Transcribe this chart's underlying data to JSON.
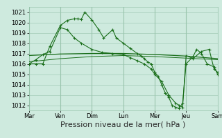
{
  "bg_color": "#ceeade",
  "grid_color": "#98c4ac",
  "line_color": "#1a6e1a",
  "marker_color": "#1a6e1a",
  "xlabel": "Pression niveau de la mer( hPa )",
  "xlabel_fontsize": 8,
  "ylabel_fontsize": 6,
  "ylim": [
    1011.5,
    1021.5
  ],
  "yticks": [
    1012,
    1013,
    1014,
    1015,
    1016,
    1017,
    1018,
    1019,
    1020,
    1021
  ],
  "day_labels": [
    "Mar",
    "Ven",
    "Dim",
    "Lun",
    "Mer",
    "Jeu",
    "Sam"
  ],
  "day_positions": [
    0,
    45,
    90,
    135,
    180,
    225,
    270
  ],
  "xlim": [
    0,
    270
  ],
  "s1_x": [
    0,
    10,
    20,
    30,
    45,
    55,
    65,
    70,
    75,
    80,
    90,
    100,
    107,
    120,
    125,
    135,
    145,
    155,
    160,
    165,
    170,
    175,
    180,
    185,
    190,
    195,
    200,
    205,
    210,
    215,
    220,
    225,
    235,
    240,
    247,
    255,
    265,
    270
  ],
  "s1_y": [
    1016.0,
    1016.0,
    1016.0,
    1017.7,
    1019.7,
    1020.2,
    1020.35,
    1020.35,
    1020.3,
    1021.0,
    1020.25,
    1019.3,
    1018.5,
    1019.3,
    1018.5,
    1018.0,
    1017.5,
    1017.0,
    1016.8,
    1016.5,
    1016.2,
    1016.0,
    1015.2,
    1014.8,
    1014.0,
    1013.2,
    1012.8,
    1012.0,
    1011.8,
    1011.7,
    1012.2,
    1016.0,
    1016.7,
    1017.4,
    1017.0,
    1016.0,
    1015.7,
    1015.0
  ],
  "s2_x": [
    0,
    45,
    90,
    135,
    180,
    225,
    270
  ],
  "s2_y": [
    1016.8,
    1016.95,
    1017.0,
    1017.0,
    1016.9,
    1016.75,
    1016.5
  ],
  "s3_x": [
    0,
    45,
    90,
    135,
    180,
    225,
    270
  ],
  "s3_y": [
    1016.2,
    1016.5,
    1016.7,
    1016.8,
    1016.7,
    1016.55,
    1016.4
  ],
  "s4_x": [
    0,
    10,
    20,
    30,
    45,
    55,
    65,
    75,
    90,
    105,
    120,
    135,
    145,
    155,
    165,
    175,
    180,
    190,
    200,
    210,
    215,
    220,
    225,
    235,
    247,
    258,
    265,
    270
  ],
  "s4_y": [
    1016.0,
    1016.4,
    1016.9,
    1017.2,
    1019.5,
    1019.3,
    1018.5,
    1018.0,
    1017.4,
    1017.1,
    1017.0,
    1016.9,
    1016.6,
    1016.3,
    1016.0,
    1015.5,
    1015.0,
    1014.3,
    1013.0,
    1012.2,
    1012.0,
    1011.8,
    1016.8,
    1016.5,
    1017.2,
    1017.4,
    1015.5,
    1015.2
  ]
}
